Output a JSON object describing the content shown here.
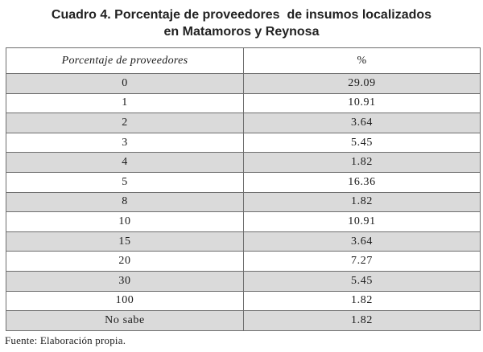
{
  "title": {
    "line1": "Cuadro 4. Porcentaje de proveedores  de insumos localizados",
    "line2": "en Matamoros y Reynosa"
  },
  "table": {
    "headers": [
      "Porcentaje de proveedores",
      "%"
    ],
    "rows": [
      [
        "0",
        "29.09"
      ],
      [
        "1",
        "10.91"
      ],
      [
        "2",
        "3.64"
      ],
      [
        "3",
        "5.45"
      ],
      [
        "4",
        "1.82"
      ],
      [
        "5",
        "16.36"
      ],
      [
        "8",
        "1.82"
      ],
      [
        "10",
        "10.91"
      ],
      [
        "15",
        "3.64"
      ],
      [
        "20",
        "7.27"
      ],
      [
        "30",
        "5.45"
      ],
      [
        "100",
        "1.82"
      ],
      [
        "No sabe",
        "1.82"
      ]
    ]
  },
  "source": "Fuente: Elaboración propia.",
  "colors": {
    "shaded_row": "#dadada",
    "border": "#6e6e6e"
  }
}
